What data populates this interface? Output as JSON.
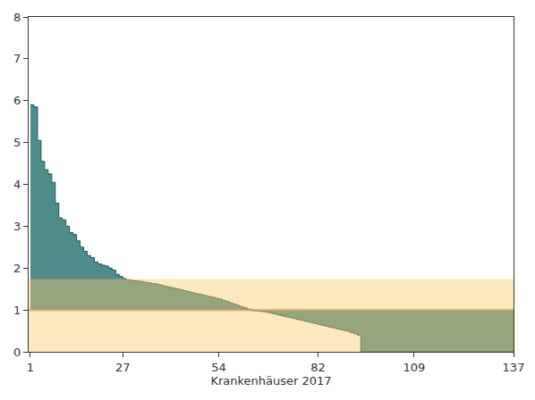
{
  "chart_data": {
    "type": "area",
    "line_style": "step",
    "x_label": "Krankenhäuser 2017",
    "color": "#4f8d8d",
    "reference_line": 1,
    "band": [
      0,
      1.74
    ],
    "x": [
      1,
      2,
      3,
      4,
      5,
      6,
      7,
      8,
      9,
      10,
      11,
      12,
      13,
      14,
      15,
      16,
      17,
      18,
      19,
      20,
      21,
      22,
      23,
      24,
      25,
      26,
      27,
      28,
      29,
      30,
      31,
      32,
      33,
      34,
      35,
      36,
      37,
      38,
      39,
      40,
      41,
      42,
      43,
      44,
      45,
      46,
      47,
      48,
      49,
      50,
      51,
      52,
      53,
      54,
      55,
      56,
      57,
      58,
      59,
      60,
      61,
      62,
      63,
      64,
      65,
      66,
      67,
      68,
      69,
      70,
      71,
      72,
      73,
      74,
      75,
      76,
      77,
      78,
      79,
      80,
      81,
      82,
      83,
      84,
      85,
      86,
      87,
      88,
      89,
      90,
      91,
      92,
      93,
      94,
      95,
      96,
      97,
      98,
      99,
      100,
      101,
      102,
      103,
      104,
      105,
      106,
      107,
      108,
      109,
      110,
      111,
      112,
      113,
      114,
      115,
      116,
      117,
      118,
      119,
      120,
      121,
      122,
      123,
      124,
      125,
      126,
      127,
      128,
      129,
      130,
      131,
      132,
      133,
      134,
      135,
      136,
      137
    ],
    "values": [
      5.9,
      5.85,
      5.05,
      4.55,
      4.35,
      4.25,
      4.05,
      3.55,
      3.2,
      3.15,
      3.0,
      2.85,
      2.8,
      2.65,
      2.5,
      2.4,
      2.3,
      2.25,
      2.15,
      2.1,
      2.07,
      2.05,
      2.0,
      1.95,
      1.85,
      1.8,
      1.75,
      1.72,
      1.71,
      1.7,
      1.69,
      1.68,
      1.66,
      1.65,
      1.63,
      1.62,
      1.6,
      1.58,
      1.56,
      1.54,
      1.52,
      1.5,
      1.48,
      1.46,
      1.44,
      1.42,
      1.4,
      1.38,
      1.36,
      1.34,
      1.32,
      1.3,
      1.28,
      1.26,
      1.23,
      1.2,
      1.17,
      1.14,
      1.11,
      1.08,
      1.05,
      1.02,
      0.99,
      0.98,
      0.97,
      0.96,
      0.95,
      0.93,
      0.91,
      0.89,
      0.87,
      0.85,
      0.83,
      0.81,
      0.79,
      0.77,
      0.75,
      0.73,
      0.71,
      0.69,
      0.67,
      0.65,
      0.63,
      0.61,
      0.59,
      0.57,
      0.55,
      0.53,
      0.51,
      0.49,
      0.46,
      0.43,
      0.4,
      0,
      0,
      0,
      0,
      0,
      0,
      0,
      0,
      0,
      0,
      0,
      0,
      0,
      0,
      0,
      0,
      0,
      0,
      0,
      0,
      0,
      0,
      0,
      0,
      0,
      0,
      0,
      0,
      0,
      0,
      0,
      0,
      0,
      0,
      0,
      0,
      0,
      0,
      0,
      0,
      0,
      0,
      0,
      0
    ],
    "xlim": [
      0.5,
      137
    ],
    "xticks": [
      1,
      27,
      54,
      82,
      109,
      137
    ],
    "ylim": [
      0,
      8
    ],
    "yticks": [
      0,
      1,
      2,
      3,
      4,
      5,
      6,
      7,
      8
    ],
    "grid": false
  }
}
